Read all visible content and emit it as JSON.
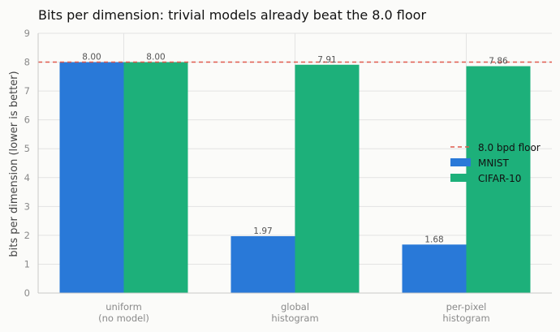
{
  "chart_data": {
    "type": "bar",
    "title": "Bits per dimension: trivial models already beat the 8.0 floor",
    "xlabel": "",
    "ylabel": "bits per dimension (lower is better)",
    "ylim": [
      0,
      9
    ],
    "yticks": [
      "0",
      "1",
      "2",
      "3",
      "4",
      "5",
      "6",
      "7",
      "8",
      "9"
    ],
    "categories": [
      [
        "uniform",
        "(no model)"
      ],
      [
        "global",
        "histogram"
      ],
      [
        "per-pixel",
        "histogram"
      ]
    ],
    "series": [
      {
        "name": "MNIST",
        "color": "#2979d8",
        "values": [
          8.0,
          1.97,
          1.68
        ],
        "labels": [
          "8.00",
          "1.97",
          "1.68"
        ]
      },
      {
        "name": "CIFAR-10",
        "color": "#1db07a",
        "values": [
          8.0,
          7.91,
          7.86
        ],
        "labels": [
          "8.00",
          "7.91",
          "7.86"
        ]
      }
    ],
    "reference_line": {
      "name": "8.0 bpd floor",
      "value": 8.0,
      "color": "#e05a4e",
      "style": "dashed"
    },
    "grid": true,
    "legend_position": "center-right"
  }
}
